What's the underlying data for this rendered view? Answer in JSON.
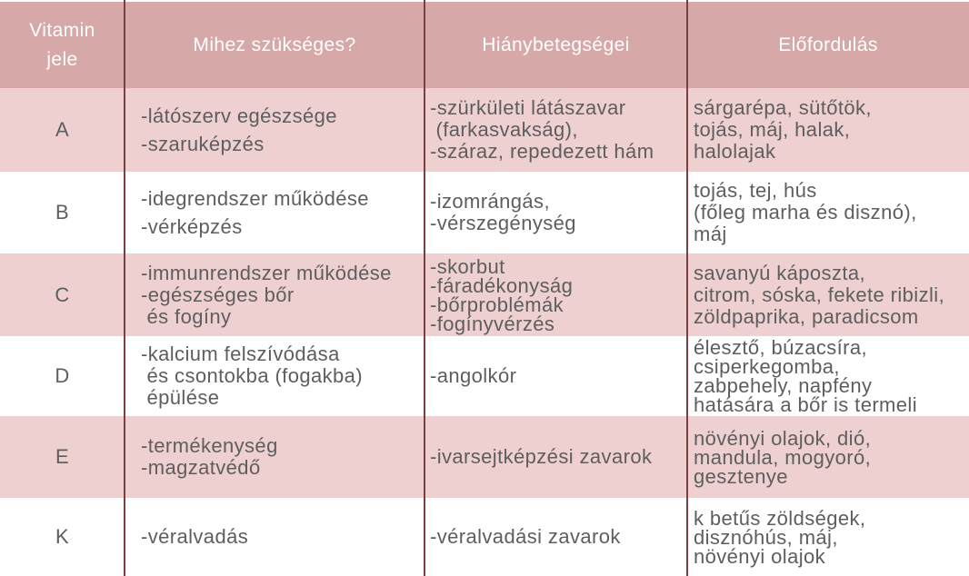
{
  "header": [
    "Vitamin\njele",
    "Mihez szükséges?",
    "Hiánybetegségei",
    "Előfordulás"
  ],
  "rows": [
    {
      "vitamin": "A",
      "need": [
        "-látószerv egészsége",
        "-szaruképzés"
      ],
      "deficiency": [
        "-szürkületi látászavar",
        " (farkasvakság),",
        "-száraz, repedezett hám"
      ],
      "sources": [
        "sárgarépa, sütőtök,",
        "tojás, máj, halak,",
        "halolajak"
      ]
    },
    {
      "vitamin": "B",
      "need": [
        "-idegrendszer működése",
        "-vérképzés"
      ],
      "deficiency": [
        "-izomrángás,",
        "-vérszegénység"
      ],
      "sources": [
        "tojás, tej, hús",
        "(főleg marha és disznó),",
        "máj"
      ]
    },
    {
      "vitamin": "C",
      "need": [
        "-immunrendszer működése",
        "-egészséges bőr",
        " és fogíny"
      ],
      "deficiency": [
        "-skorbut",
        "-fáradékonyság",
        "-bőrproblémák",
        "-fogínyvérzés"
      ],
      "sources": [
        "savanyú káposzta,",
        "citrom, sóska, fekete ribizli,",
        "zöldpaprika, paradicsom"
      ]
    },
    {
      "vitamin": "D",
      "need": [
        "-kalcium felszívódása",
        " és csontokba (fogakba)",
        " épülése"
      ],
      "deficiency": [
        "-angolkór"
      ],
      "sources": [
        "élesztő, búzacsíra,",
        "csiperkegomba,",
        "zabpehely, napfény",
        "hatására a bőr is termeli"
      ]
    },
    {
      "vitamin": "E",
      "need": [
        "-termékenység",
        "-magzatvédő"
      ],
      "deficiency": [
        "-ivarsejtképzési zavarok"
      ],
      "sources": [
        "növényi olajok, dió,",
        "mandula, mogyoró,",
        "gesztenye"
      ]
    },
    {
      "vitamin": "K",
      "need": [
        "-véralvadás"
      ],
      "deficiency": [
        "-véralvadási zavarok"
      ],
      "sources": [
        "k betűs zöldségek,",
        "disznóhús, máj,",
        "növényi olajok"
      ]
    }
  ],
  "colors": {
    "header": "#d6a8a8",
    "band": "#eed0d0",
    "rule": "#7a3f42",
    "text": "#5e5e5e"
  }
}
